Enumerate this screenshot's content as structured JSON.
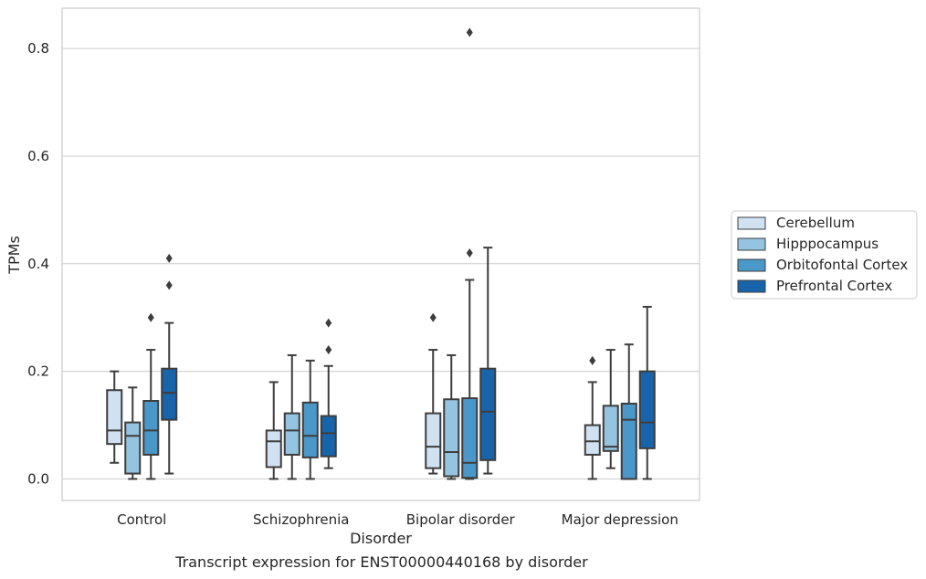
{
  "chart_data": {
    "type": "box",
    "caption": "Transcript expression for ENST00000440168 by disorder",
    "xlabel": "Disorder",
    "ylabel": "TPMs",
    "ylim": [
      -0.04,
      0.875
    ],
    "yticks": [
      "0.0",
      "0.2",
      "0.4",
      "0.6",
      "0.8"
    ],
    "grid": "horizontal",
    "legend_position": "right",
    "categories": [
      "Control",
      "Schizophrenia",
      "Bipolar disorder",
      "Major depression"
    ],
    "series": [
      {
        "name": "Cerebellum",
        "color": "#d0e1f2",
        "boxes": [
          {
            "whislo": 0.03,
            "q1": 0.065,
            "med": 0.09,
            "q3": 0.165,
            "whishi": 0.2,
            "fliers": []
          },
          {
            "whislo": 0.0,
            "q1": 0.022,
            "med": 0.07,
            "q3": 0.09,
            "whishi": 0.18,
            "fliers": []
          },
          {
            "whislo": 0.01,
            "q1": 0.02,
            "med": 0.06,
            "q3": 0.122,
            "whishi": 0.24,
            "fliers": [
              0.3
            ]
          },
          {
            "whislo": 0.0,
            "q1": 0.045,
            "med": 0.07,
            "q3": 0.1,
            "whishi": 0.18,
            "fliers": [
              0.22
            ]
          }
        ]
      },
      {
        "name": "Hipppocampus",
        "color": "#94c4df",
        "boxes": [
          {
            "whislo": 0.0,
            "q1": 0.01,
            "med": 0.08,
            "q3": 0.105,
            "whishi": 0.17,
            "fliers": []
          },
          {
            "whislo": 0.0,
            "q1": 0.045,
            "med": 0.09,
            "q3": 0.122,
            "whishi": 0.23,
            "fliers": []
          },
          {
            "whislo": 0.0,
            "q1": 0.005,
            "med": 0.05,
            "q3": 0.148,
            "whishi": 0.23,
            "fliers": []
          },
          {
            "whislo": 0.02,
            "q1": 0.052,
            "med": 0.06,
            "q3": 0.136,
            "whishi": 0.24,
            "fliers": []
          }
        ]
      },
      {
        "name": "Orbitofontal Cortex",
        "color": "#4a98c9",
        "boxes": [
          {
            "whislo": 0.0,
            "q1": 0.045,
            "med": 0.09,
            "q3": 0.145,
            "whishi": 0.24,
            "fliers": [
              0.3
            ]
          },
          {
            "whislo": 0.0,
            "q1": 0.04,
            "med": 0.08,
            "q3": 0.142,
            "whishi": 0.22,
            "fliers": []
          },
          {
            "whislo": 0.0,
            "q1": 0.002,
            "med": 0.03,
            "q3": 0.15,
            "whishi": 0.37,
            "fliers": [
              0.42,
              0.83
            ]
          },
          {
            "whislo": 0.0,
            "q1": 0.0,
            "med": 0.11,
            "q3": 0.14,
            "whishi": 0.25,
            "fliers": []
          }
        ]
      },
      {
        "name": "Prefrontal Cortex",
        "color": "#1764ab",
        "boxes": [
          {
            "whislo": 0.01,
            "q1": 0.11,
            "med": 0.16,
            "q3": 0.205,
            "whishi": 0.29,
            "fliers": [
              0.36,
              0.41
            ]
          },
          {
            "whislo": 0.02,
            "q1": 0.042,
            "med": 0.085,
            "q3": 0.117,
            "whishi": 0.21,
            "fliers": [
              0.24,
              0.29
            ]
          },
          {
            "whislo": 0.01,
            "q1": 0.035,
            "med": 0.125,
            "q3": 0.205,
            "whishi": 0.43,
            "fliers": []
          },
          {
            "whislo": 0.0,
            "q1": 0.057,
            "med": 0.105,
            "q3": 0.2,
            "whishi": 0.32,
            "fliers": []
          }
        ]
      }
    ]
  }
}
